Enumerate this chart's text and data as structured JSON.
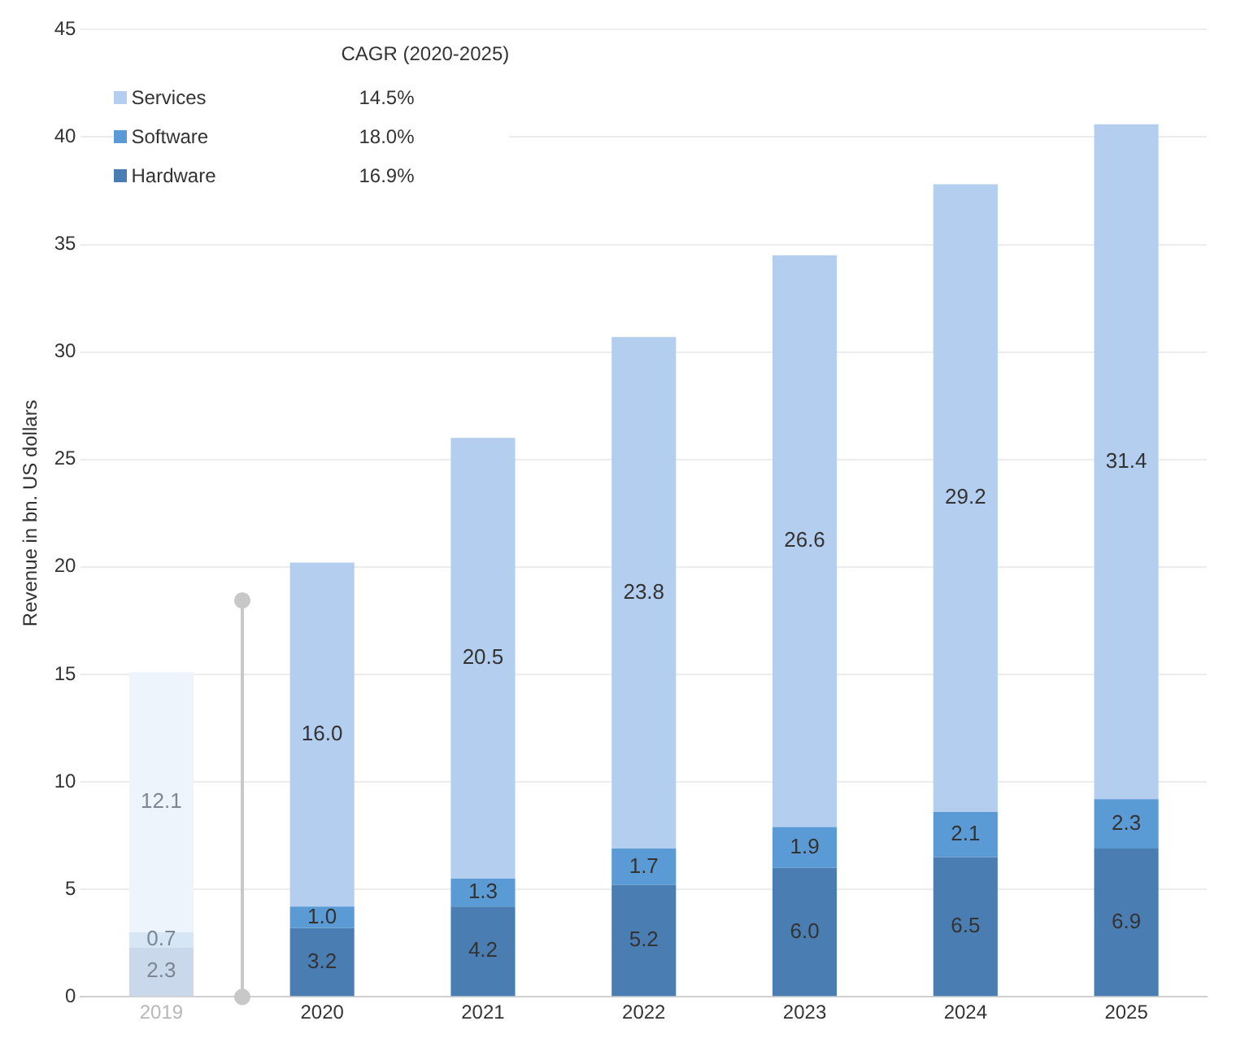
{
  "chart_data": {
    "type": "bar",
    "stacked": true,
    "ylabel": "Revenue in bn. US dollars",
    "legend_title": "CAGR (2020-2025)",
    "legend": "top left",
    "grid": "y",
    "categories": [
      "2019",
      "2020",
      "2021",
      "2022",
      "2023",
      "2024",
      "2025"
    ],
    "ylim": [
      0,
      45
    ],
    "yticks": [
      0,
      5,
      10,
      15,
      20,
      25,
      30,
      35,
      40,
      45
    ],
    "series": [
      {
        "name": "Hardware",
        "color": "#4a7eb3",
        "colors": [
          "#c9d8ea",
          "#4a7eb3",
          "#4a7eb3",
          "#4a7eb3",
          "#4a7eb3",
          "#4a7eb3",
          "#4a7eb3"
        ],
        "values": [
          2.3,
          3.2,
          4.2,
          5.2,
          6.0,
          6.5,
          6.9
        ],
        "value_labels": [
          "2.3",
          "3.2",
          "4.2",
          "5.2",
          "6.0",
          "6.5",
          "6.9"
        ]
      },
      {
        "name": "Software",
        "color": "#5b9bd5",
        "colors": [
          "#d6e6f5",
          "#5b9bd5",
          "#5b9bd5",
          "#5b9bd5",
          "#5b9bd5",
          "#5b9bd5",
          "#5b9bd5"
        ],
        "values": [
          0.7,
          1.0,
          1.3,
          1.7,
          1.9,
          2.1,
          2.3
        ],
        "value_labels": [
          "0.7",
          "1.0",
          "1.3",
          "1.7",
          "1.9",
          "2.1",
          "2.3"
        ]
      },
      {
        "name": "Services",
        "color": "#b3ceee",
        "colors": [
          "#eef4fc",
          "#b3ceee",
          "#b3ceee",
          "#b3ceee",
          "#b3ceee",
          "#b3ceee",
          "#b3ceee"
        ],
        "values": [
          12.1,
          16.0,
          20.5,
          23.8,
          26.6,
          29.2,
          31.4
        ],
        "value_labels": [
          "12.1",
          "16.0",
          "20.5",
          "23.8",
          "26.6",
          "29.2",
          "31.4"
        ]
      }
    ],
    "annotations": [
      "16.9%",
      "18.0%",
      "14.5%"
    ]
  }
}
